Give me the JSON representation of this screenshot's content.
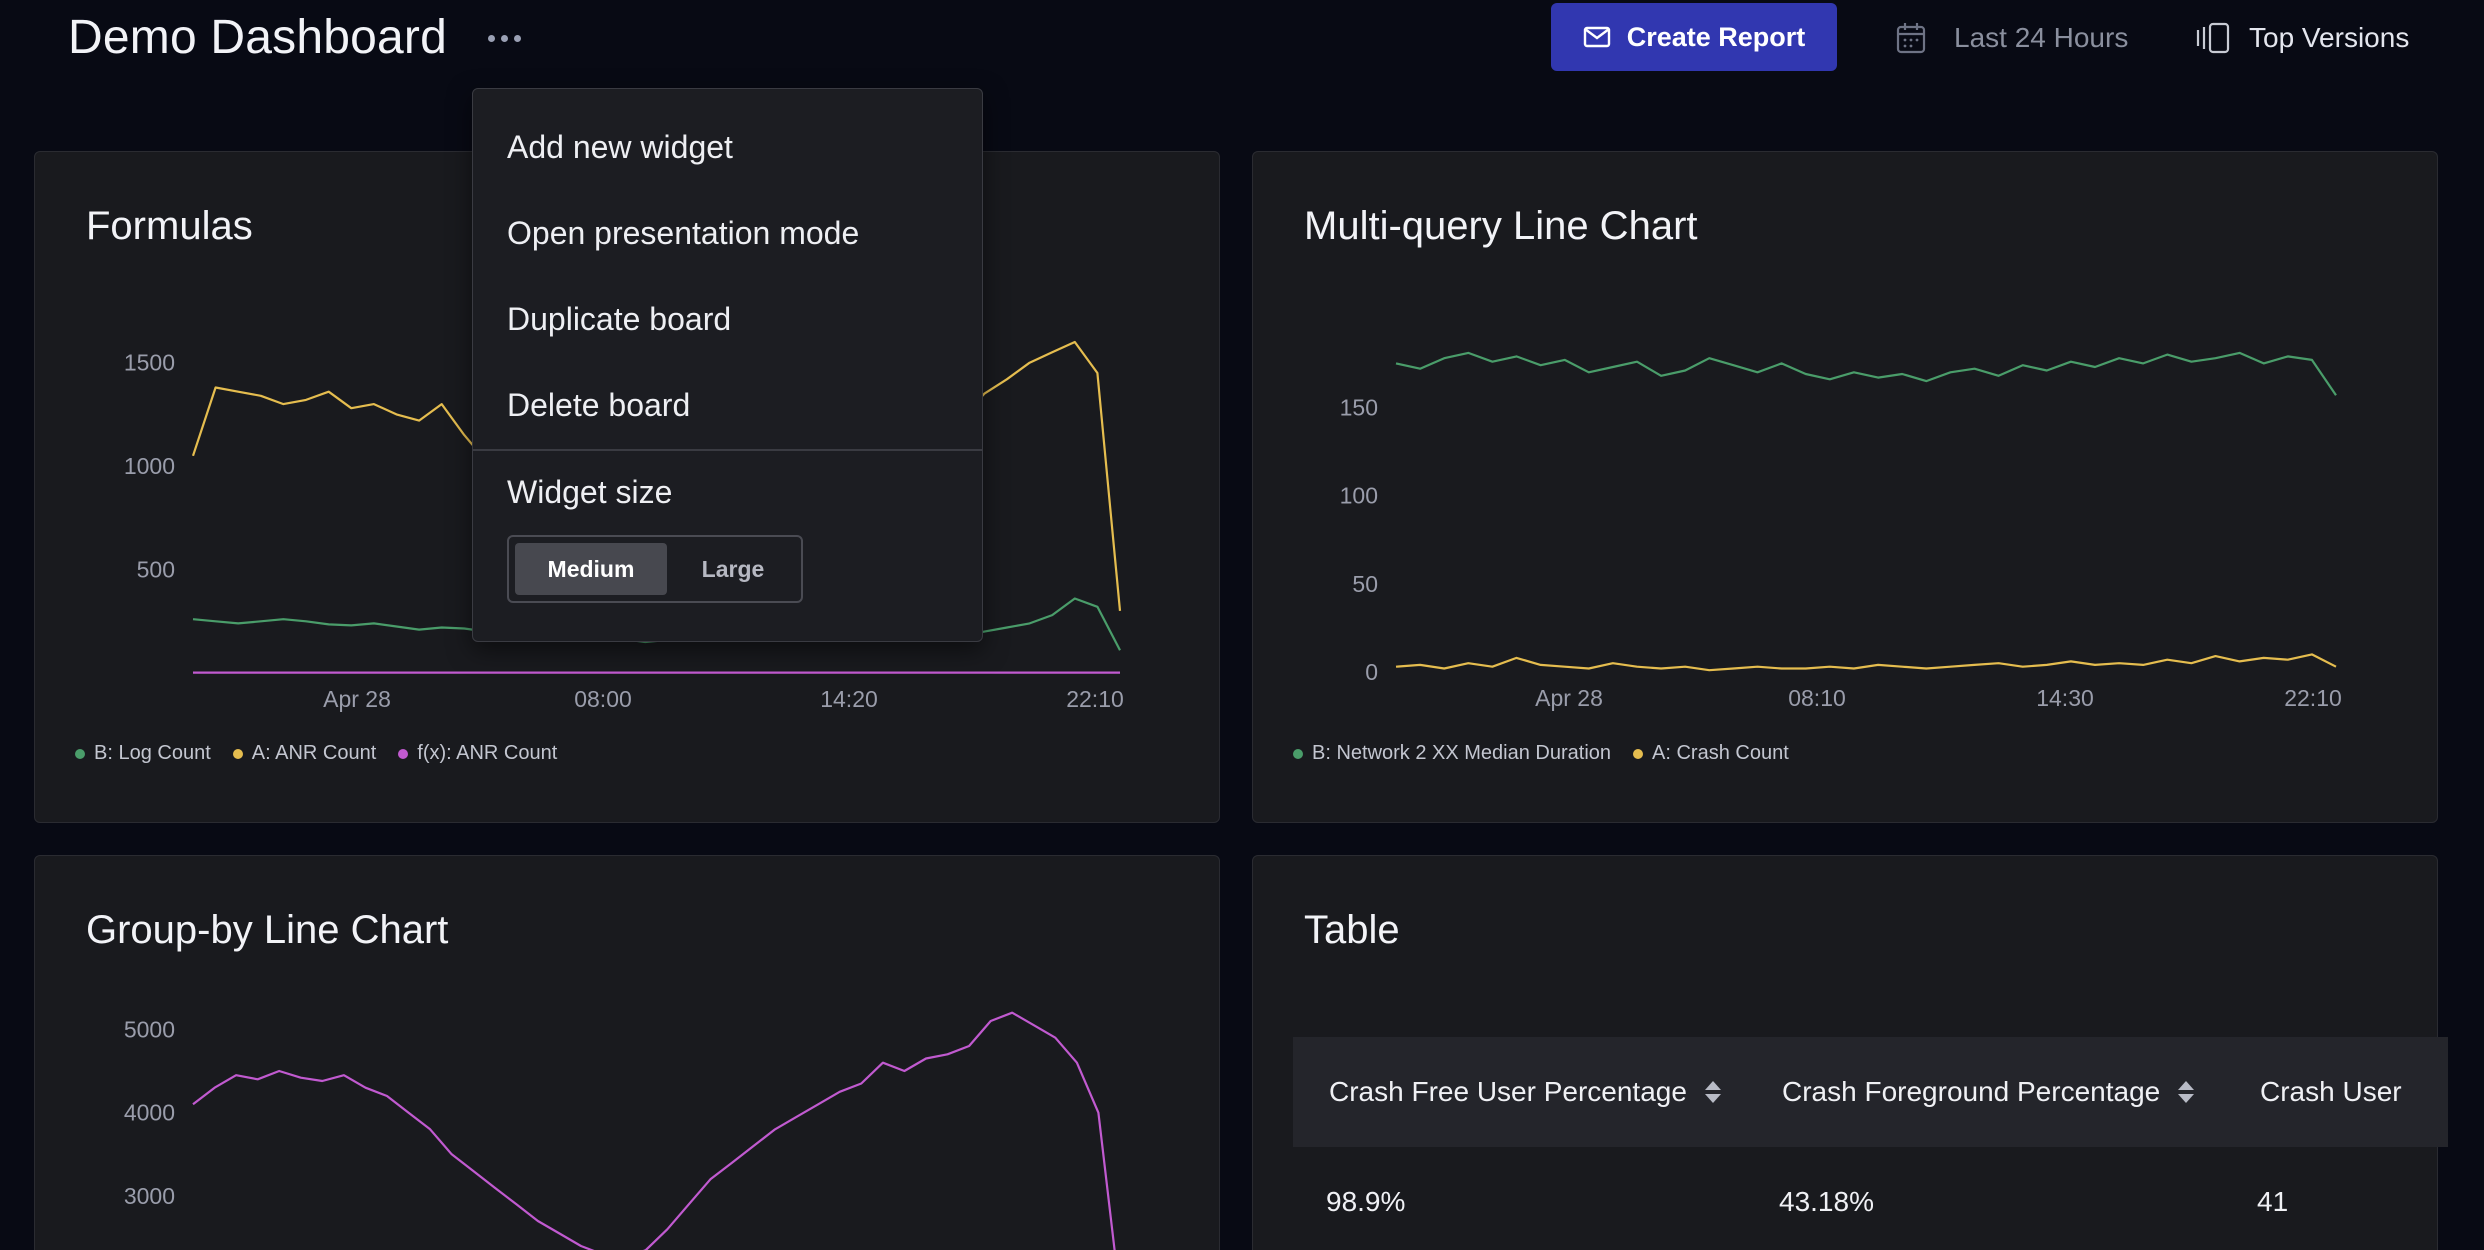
{
  "header": {
    "title": "Demo Dashboard",
    "create_report_label": "Create Report",
    "date_range_label": "Last 24 Hours",
    "versions_label": "Top Versions"
  },
  "menu": {
    "items": [
      "Add new widget",
      "Open presentation mode",
      "Duplicate board",
      "Delete board"
    ],
    "widget_size_label": "Widget size",
    "size_options": [
      "Medium",
      "Large"
    ],
    "selected_size": "Medium"
  },
  "widgets": {
    "formulas": {
      "title": "Formulas"
    },
    "multi_query": {
      "title": "Multi-query Line Chart"
    },
    "group_by": {
      "title": "Group-by Line Chart"
    },
    "table": {
      "title": "Table",
      "columns": [
        "Crash Free User Percentage",
        "Crash Foreground Percentage",
        "Crash User"
      ],
      "rows": [
        [
          "98.9%",
          "43.18%",
          "41"
        ]
      ]
    }
  },
  "colors": {
    "green": "#4a9d6a",
    "yellow": "#e5bd4f",
    "magenta": "#c15ad0",
    "accent": "#3137b0"
  },
  "chart_data": [
    {
      "type": "line",
      "title": "Formulas",
      "x_ticks": [
        "Apr 28",
        "08:00",
        "14:20",
        "22:10"
      ],
      "y_ticks": [
        "1500",
        "1000",
        "500"
      ],
      "ylim": [
        0,
        1600
      ],
      "legend": [
        "B: Log Count",
        "A: ANR Count",
        "f(x): ANR Count"
      ],
      "series": [
        {
          "name": "A: ANR Count",
          "color": "#e5bd4f",
          "values": [
            1050,
            1380,
            1360,
            1340,
            1300,
            1320,
            1360,
            1280,
            1300,
            1250,
            1220,
            1300,
            1150,
            1020,
            880,
            760,
            660,
            580,
            520,
            500,
            480,
            470,
            460,
            450,
            440,
            440,
            450,
            470,
            520,
            600,
            700,
            820,
            950,
            1100,
            1230,
            1350,
            1420,
            1500,
            1550,
            1600,
            1450,
            300
          ]
        },
        {
          "name": "B: Log Count",
          "color": "#4a9d6a",
          "values": [
            260,
            250,
            240,
            250,
            260,
            250,
            235,
            230,
            240,
            225,
            210,
            220,
            215,
            200,
            195,
            190,
            170,
            180,
            175,
            165,
            150,
            160,
            165,
            160,
            170,
            165,
            160,
            175,
            180,
            175,
            185,
            190,
            185,
            180,
            190,
            200,
            220,
            240,
            280,
            360,
            320,
            110
          ]
        },
        {
          "name": "f(x): ANR Count",
          "color": "#c15ad0",
          "values": [
            2,
            2,
            2,
            2,
            2,
            2,
            2,
            2,
            2,
            2,
            2,
            2,
            2,
            2,
            2,
            2,
            2,
            2,
            2,
            2,
            2,
            2,
            2,
            2,
            2,
            2,
            2,
            2,
            2,
            2,
            2,
            2,
            2,
            2,
            2,
            2,
            2,
            2,
            2,
            2,
            2,
            2
          ]
        }
      ]
    },
    {
      "type": "line",
      "title": "Multi-query Line Chart",
      "x_ticks": [
        "Apr 28",
        "08:10",
        "14:30",
        "22:10"
      ],
      "y_ticks": [
        "150",
        "100",
        "50",
        "0"
      ],
      "ylim": [
        0,
        190
      ],
      "legend": [
        "B: Network 2 XX Median Duration",
        "A: Crash Count"
      ],
      "series": [
        {
          "name": "B: Network 2 XX Median Duration",
          "color": "#4a9d6a",
          "values": [
            175,
            172,
            178,
            181,
            176,
            179,
            174,
            177,
            170,
            173,
            176,
            168,
            171,
            178,
            174,
            170,
            175,
            169,
            166,
            170,
            167,
            169,
            165,
            170,
            172,
            168,
            174,
            171,
            176,
            173,
            178,
            175,
            180,
            176,
            178,
            181,
            175,
            179,
            177,
            157
          ]
        },
        {
          "name": "A: Crash Count",
          "color": "#e5bd4f",
          "values": [
            3,
            4,
            2,
            5,
            3,
            8,
            4,
            3,
            2,
            5,
            3,
            2,
            3,
            1,
            2,
            3,
            2,
            2,
            3,
            2,
            4,
            3,
            2,
            3,
            4,
            5,
            3,
            4,
            6,
            4,
            5,
            4,
            7,
            5,
            9,
            6,
            8,
            7,
            10,
            3
          ]
        }
      ]
    },
    {
      "type": "line",
      "title": "Group-by Line Chart",
      "x_ticks": [],
      "y_ticks": [
        "5000",
        "4000",
        "3000"
      ],
      "ylim": [
        1800,
        5400
      ],
      "legend": [],
      "series": [
        {
          "name": "",
          "color": "#c15ad0",
          "values": [
            4100,
            4300,
            4450,
            4400,
            4500,
            4420,
            4380,
            4450,
            4300,
            4200,
            4000,
            3800,
            3500,
            3300,
            3100,
            2900,
            2700,
            2550,
            2400,
            2300,
            2250,
            2350,
            2600,
            2900,
            3200,
            3400,
            3600,
            3800,
            3950,
            4100,
            4250,
            4350,
            4600,
            4500,
            4650,
            4700,
            4800,
            5100,
            5200,
            5050,
            4900,
            4600,
            4000,
            1800
          ]
        }
      ]
    }
  ]
}
